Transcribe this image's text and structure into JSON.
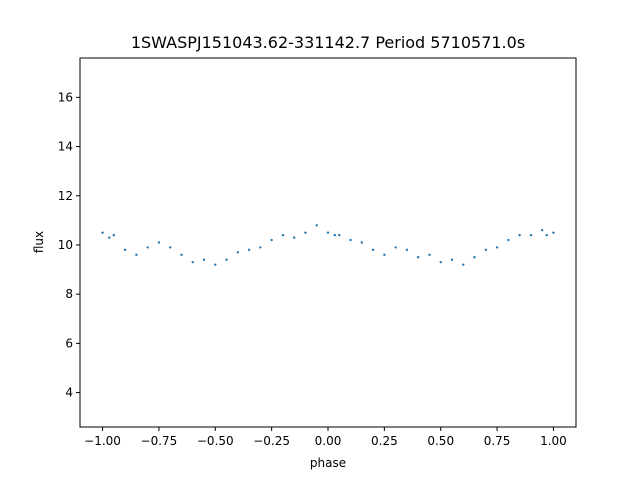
{
  "chart_data": {
    "type": "scatter",
    "title": "1SWASPJ151043.62-331142.7 Period 5710571.0s",
    "xlabel": "phase",
    "ylabel": "flux",
    "xlim": [
      -1.1,
      1.1
    ],
    "ylim": [
      2.6,
      17.6
    ],
    "xticks": [
      -1.0,
      -0.75,
      -0.5,
      -0.25,
      0.0,
      0.25,
      0.5,
      0.75,
      1.0
    ],
    "xtick_labels": [
      "−1.00",
      "−0.75",
      "−0.50",
      "−0.25",
      "0.00",
      "0.25",
      "0.50",
      "0.75",
      "1.00"
    ],
    "yticks": [
      4,
      6,
      8,
      10,
      12,
      14,
      16
    ],
    "ytick_labels": [
      "4",
      "6",
      "8",
      "10",
      "12",
      "14",
      "16"
    ],
    "grid": false,
    "legend": "none",
    "marker_color": "#1f77b4",
    "series": [
      {
        "x": [
          -1.0,
          -0.97,
          -0.95,
          -0.9,
          -0.85,
          -0.8,
          -0.75,
          -0.7,
          -0.65,
          -0.6,
          -0.55,
          -0.5,
          -0.45,
          -0.4,
          -0.35,
          -0.3,
          -0.25,
          -0.2,
          -0.15,
          -0.1,
          -0.05,
          0.0,
          0.03,
          0.05,
          0.1,
          0.15,
          0.2,
          0.25,
          0.3,
          0.35,
          0.4,
          0.45,
          0.5,
          0.55,
          0.6,
          0.65,
          0.7,
          0.75,
          0.8,
          0.85,
          0.9,
          0.95,
          0.97,
          1.0
        ],
        "y": [
          10.5,
          10.3,
          10.4,
          9.8,
          9.6,
          9.9,
          10.1,
          9.9,
          9.6,
          9.3,
          9.4,
          9.2,
          9.4,
          9.7,
          9.8,
          9.9,
          10.2,
          10.4,
          10.3,
          10.5,
          10.8,
          10.5,
          10.4,
          10.4,
          10.2,
          10.1,
          9.8,
          9.6,
          9.9,
          9.8,
          9.5,
          9.6,
          9.3,
          9.4,
          9.2,
          9.5,
          9.8,
          9.9,
          10.2,
          10.4,
          10.4,
          10.6,
          10.4,
          10.5
        ]
      }
    ]
  }
}
